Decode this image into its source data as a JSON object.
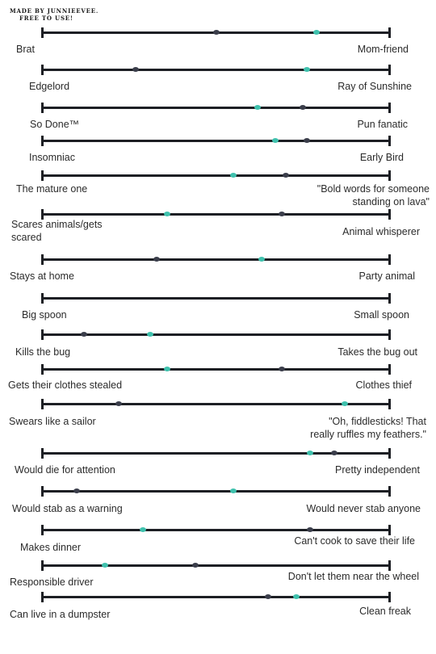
{
  "credit": {
    "line1": "MADE BY JUNNIEEVEE.",
    "line2": "FREE TO USE!"
  },
  "colors": {
    "line": "#1d1f24",
    "marker_a": "#3a3d4a",
    "marker_b": "#3fc1ad"
  },
  "scales": [
    {
      "left": [
        "Brat"
      ],
      "right": [
        "Mom-friend"
      ],
      "marker_a": 0.5,
      "marker_b": 0.79
    },
    {
      "left": [
        "Edgelord"
      ],
      "right": [
        "Ray of Sunshine"
      ],
      "marker_a": 0.27,
      "marker_b": 0.76
    },
    {
      "left": [
        "So Done™"
      ],
      "right": [
        "Pun fanatic"
      ],
      "marker_a": 0.75,
      "marker_b": 0.62
    },
    {
      "left": [
        "Insomniac"
      ],
      "right": [
        "Early Bird"
      ],
      "marker_a": 0.76,
      "marker_b": 0.67
    },
    {
      "left": [
        "The mature one"
      ],
      "right": [
        "\"Bold words for someone",
        "standing on lava\""
      ],
      "marker_a": 0.7,
      "marker_b": 0.55
    },
    {
      "left": [
        "Scares animals/gets",
        "scared"
      ],
      "right": [
        "Animal whisperer"
      ],
      "marker_a": 0.69,
      "marker_b": 0.36
    },
    {
      "left": [
        "Stays at home"
      ],
      "right": [
        "Party animal"
      ],
      "marker_a": 0.33,
      "marker_b": 0.63
    },
    {
      "left": [
        "Big spoon"
      ],
      "right": [
        "Small spoon"
      ],
      "marker_a": null,
      "marker_b": null
    },
    {
      "left": [
        "Kills the bug"
      ],
      "right": [
        "Takes the bug out"
      ],
      "marker_a": 0.12,
      "marker_b": 0.31
    },
    {
      "left": [
        "Gets their clothes stealed"
      ],
      "right": [
        "Clothes thief"
      ],
      "marker_a": 0.69,
      "marker_b": 0.36
    },
    {
      "left": [
        "Swears like a sailor"
      ],
      "right": [
        "\"Oh, fiddlesticks! That",
        "really ruffles my feathers.\""
      ],
      "marker_a": 0.22,
      "marker_b": 0.87
    },
    {
      "left": [
        "Would die for attention"
      ],
      "right": [
        "Pretty independent"
      ],
      "marker_a": 0.84,
      "marker_b": 0.77
    },
    {
      "left": [
        "Would stab as a warning"
      ],
      "right": [
        "Would never stab anyone"
      ],
      "marker_a": 0.1,
      "marker_b": 0.55
    },
    {
      "left": [
        "Makes dinner"
      ],
      "right": [
        "Can't cook to save their life"
      ],
      "marker_a": 0.77,
      "marker_b": 0.29
    },
    {
      "left": [
        "Responsible driver"
      ],
      "right": [
        "Don't let them near the wheel"
      ],
      "marker_a": 0.44,
      "marker_b": 0.18
    },
    {
      "left": [
        "Can live in a dumpster"
      ],
      "right": [
        "Clean freak"
      ],
      "marker_a": 0.65,
      "marker_b": 0.73
    }
  ]
}
